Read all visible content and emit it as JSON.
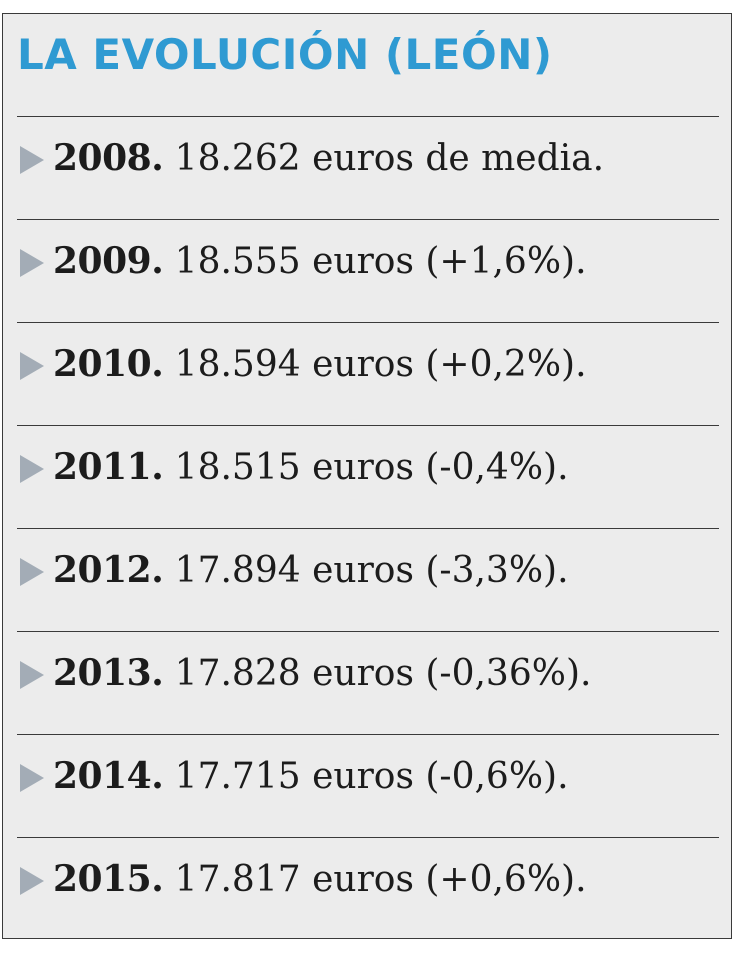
{
  "title": "LA EVOLUCIÓN (LEÓN)",
  "colors": {
    "title": "#2f9ad2",
    "arrow": "#a3acb6",
    "background": "#ececec",
    "rule": "#3a3a3a"
  },
  "entries": [
    {
      "year": "2008.",
      "text": " 18.262 euros de media."
    },
    {
      "year": "2009.",
      "text": " 18.555 euros (+1,6%)."
    },
    {
      "year": "2010.",
      "text": " 18.594 euros (+0,2%)."
    },
    {
      "year": "2011.",
      "text": " 18.515 euros (-0,4%)."
    },
    {
      "year": "2012.",
      "text": " 17.894 euros (-3,3%)."
    },
    {
      "year": "2013.",
      "text": " 17.828 euros (-0,36%)."
    },
    {
      "year": "2014.",
      "text": " 17.715 euros (-0,6%)."
    },
    {
      "year": "2015.",
      "text": " 17.817 euros (+0,6%)."
    }
  ]
}
